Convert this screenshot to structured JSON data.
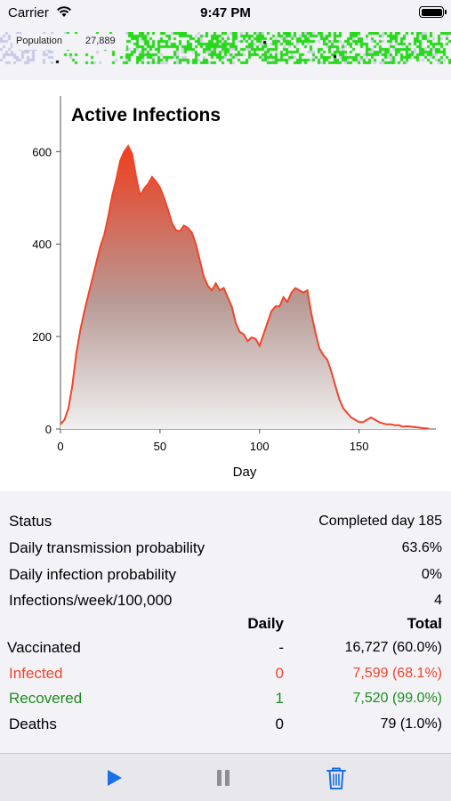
{
  "status_bar": {
    "carrier": "Carrier",
    "time": "9:47 PM"
  },
  "population": {
    "label": "Population",
    "count": "27,889"
  },
  "colors": {
    "accent": "#1b6fe8",
    "infected": "#f0452a",
    "recovered": "#1e8c1e",
    "grid_healthy": "#27d81b"
  },
  "chart_data": {
    "type": "area",
    "title": "Active Infections",
    "xlabel": "Day",
    "ylabel": "",
    "xlim": [
      0,
      185
    ],
    "ylim": [
      0,
      720
    ],
    "x_ticks": [
      0,
      50,
      100,
      150
    ],
    "y_ticks": [
      0,
      200,
      400,
      600
    ],
    "x_tick_labels": [
      "0",
      "50",
      "100",
      "150"
    ],
    "y_tick_labels": [
      "0",
      "200",
      "400",
      "600"
    ],
    "x": [
      0,
      2,
      4,
      6,
      8,
      10,
      12,
      14,
      16,
      18,
      20,
      22,
      24,
      26,
      28,
      30,
      32,
      34,
      36,
      38,
      40,
      42,
      44,
      46,
      48,
      50,
      52,
      54,
      56,
      58,
      60,
      62,
      64,
      66,
      68,
      70,
      72,
      74,
      76,
      78,
      80,
      82,
      84,
      86,
      88,
      90,
      92,
      94,
      96,
      98,
      100,
      102,
      104,
      106,
      108,
      110,
      112,
      114,
      116,
      118,
      120,
      122,
      124,
      126,
      128,
      130,
      132,
      134,
      136,
      138,
      140,
      142,
      144,
      146,
      148,
      150,
      152,
      154,
      156,
      158,
      160,
      162,
      164,
      166,
      168,
      170,
      172,
      174,
      176,
      178,
      180,
      182,
      185
    ],
    "values": [
      10,
      20,
      45,
      95,
      165,
      215,
      255,
      290,
      325,
      360,
      395,
      420,
      460,
      505,
      540,
      580,
      600,
      612,
      595,
      545,
      505,
      520,
      530,
      545,
      535,
      522,
      500,
      475,
      445,
      430,
      428,
      440,
      435,
      425,
      400,
      365,
      330,
      310,
      300,
      315,
      300,
      305,
      285,
      265,
      230,
      210,
      205,
      190,
      198,
      195,
      180,
      205,
      230,
      255,
      265,
      265,
      285,
      275,
      295,
      305,
      300,
      295,
      300,
      250,
      210,
      175,
      160,
      150,
      125,
      95,
      65,
      45,
      35,
      25,
      20,
      15,
      15,
      20,
      25,
      20,
      15,
      12,
      10,
      10,
      8,
      8,
      5,
      6,
      5,
      4,
      3,
      2,
      1
    ]
  },
  "stats": {
    "status": {
      "label": "Status",
      "value": "Completed day 185"
    },
    "transmission": {
      "label": "Daily transmission probability",
      "value": "63.6%"
    },
    "infection_prob": {
      "label": "Daily infection probability",
      "value": "0%"
    },
    "infections_week": {
      "label": "Infections/week/100,000",
      "value": "4"
    },
    "header": {
      "daily": "Daily",
      "total": "Total"
    },
    "vaccinated": {
      "label": "Vaccinated",
      "daily": "-",
      "total": "16,727 (60.0%)"
    },
    "infected": {
      "label": "Infected",
      "daily": "0",
      "total": "7,599 (68.1%)"
    },
    "recovered": {
      "label": "Recovered",
      "daily": "1",
      "total": "7,520 (99.0%)"
    },
    "deaths": {
      "label": "Deaths",
      "daily": "0",
      "total": "79 (1.0%)"
    }
  },
  "toolbar": {
    "play_icon": "play-icon",
    "pause_icon": "pause-icon",
    "trash_icon": "trash-icon"
  }
}
